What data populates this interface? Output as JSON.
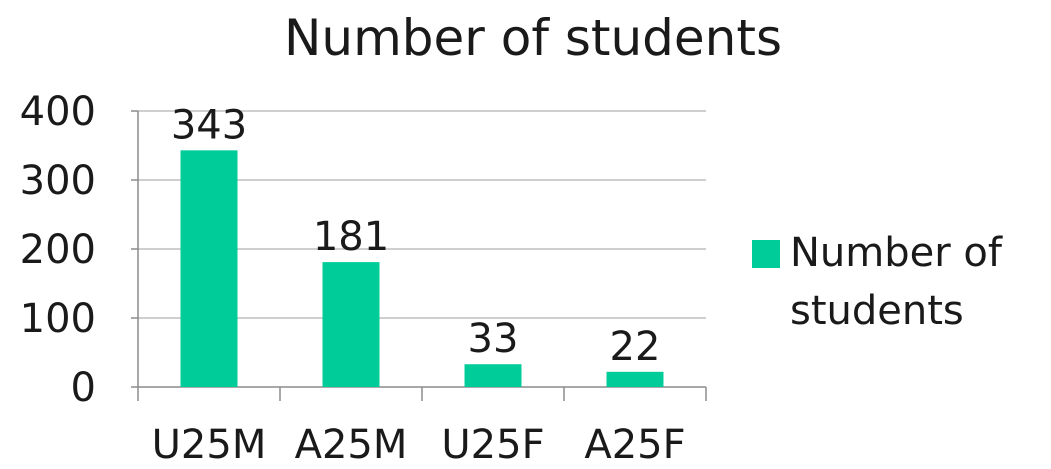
{
  "chart_data": {
    "type": "bar",
    "title": "Number of students",
    "categories": [
      "U25M",
      "A25M",
      "U25F",
      "A25F"
    ],
    "series": [
      {
        "name": "Number of students",
        "values": [
          343,
          181,
          33,
          22
        ],
        "color": "#00CC99"
      }
    ],
    "data_labels": [
      "343",
      "181",
      "33",
      "22"
    ],
    "y_ticks": [
      "0",
      "100",
      "200",
      "300",
      "400"
    ],
    "ylim": [
      0,
      400
    ],
    "xlabel": "",
    "ylabel": "",
    "grid": true,
    "legend": {
      "position": "right",
      "lines": [
        "Number of",
        "students"
      ]
    },
    "colors": {
      "bar": "#00CC99",
      "grid": "#bfbfbf",
      "axis": "#8c8c8c",
      "text": "#1a1a1a"
    }
  }
}
